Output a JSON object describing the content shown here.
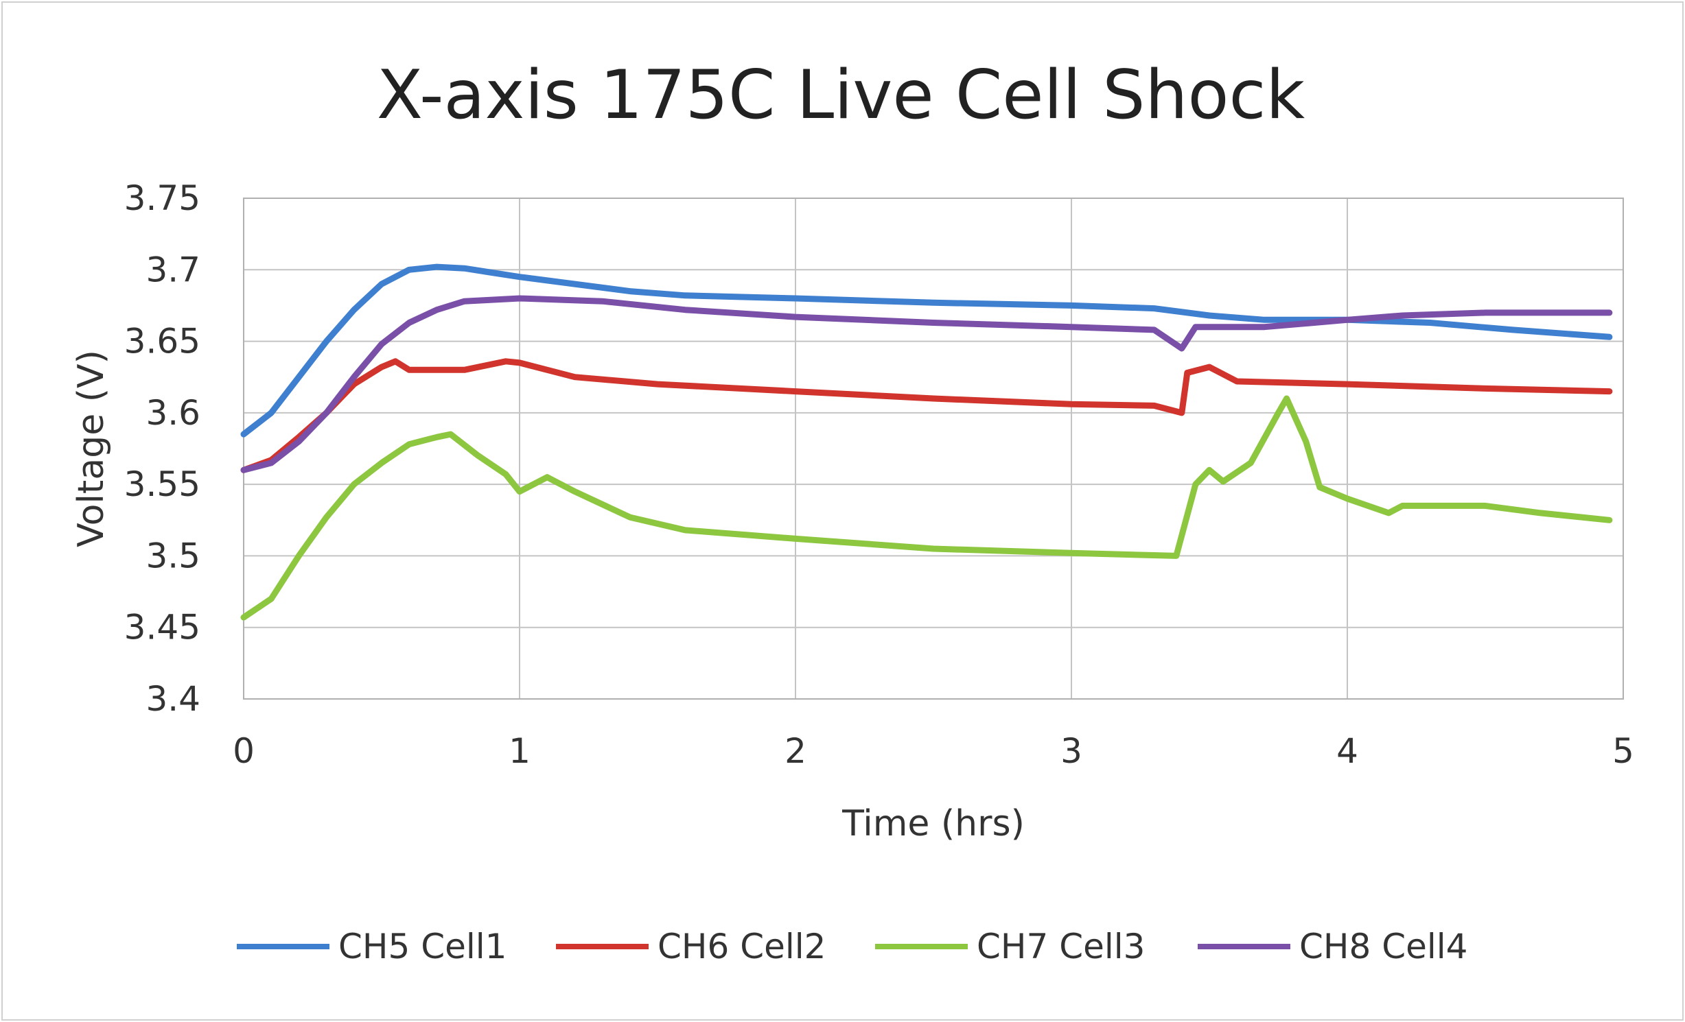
{
  "chart_data": {
    "type": "line",
    "title": "X-axis 175C Live Cell Shock",
    "xlabel": "Time (hrs)",
    "ylabel": "Voltage (V)",
    "xlim": [
      0,
      5
    ],
    "ylim": [
      3.4,
      3.75
    ],
    "xticks": [
      "0",
      "1",
      "2",
      "3",
      "4",
      "5"
    ],
    "yticks": [
      "3.4",
      "3.45",
      "3.5",
      "3.55",
      "3.6",
      "3.65",
      "3.7",
      "3.75"
    ],
    "grid": true,
    "legend_position": "bottom",
    "series": [
      {
        "name": "CH5 Cell1",
        "color": "#3f7fcf",
        "x": [
          0,
          0.1,
          0.2,
          0.3,
          0.4,
          0.5,
          0.6,
          0.7,
          0.8,
          0.9,
          1.0,
          1.2,
          1.4,
          1.6,
          2.0,
          2.5,
          3.0,
          3.3,
          3.5,
          3.7,
          4.0,
          4.3,
          4.6,
          4.95
        ],
        "y": [
          3.585,
          3.6,
          3.625,
          3.65,
          3.672,
          3.69,
          3.7,
          3.702,
          3.701,
          3.698,
          3.695,
          3.69,
          3.685,
          3.682,
          3.68,
          3.677,
          3.675,
          3.673,
          3.668,
          3.665,
          3.665,
          3.663,
          3.658,
          3.653
        ]
      },
      {
        "name": "CH6 Cell2",
        "color": "#d0342c",
        "x": [
          0,
          0.1,
          0.2,
          0.3,
          0.4,
          0.5,
          0.55,
          0.6,
          0.8,
          0.95,
          1.0,
          1.2,
          1.5,
          1.8,
          2.0,
          2.5,
          3.0,
          3.3,
          3.4,
          3.42,
          3.5,
          3.6,
          4.0,
          4.5,
          4.95
        ],
        "y": [
          3.56,
          3.567,
          3.583,
          3.6,
          3.62,
          3.632,
          3.636,
          3.63,
          3.63,
          3.636,
          3.635,
          3.625,
          3.62,
          3.617,
          3.615,
          3.61,
          3.606,
          3.605,
          3.6,
          3.628,
          3.632,
          3.622,
          3.62,
          3.617,
          3.615
        ]
      },
      {
        "name": "CH7 Cell3",
        "color": "#8dc63f",
        "x": [
          0,
          0.1,
          0.2,
          0.3,
          0.4,
          0.5,
          0.6,
          0.7,
          0.75,
          0.85,
          0.95,
          1.0,
          1.1,
          1.2,
          1.4,
          1.6,
          2.0,
          2.5,
          3.0,
          3.38,
          3.45,
          3.5,
          3.55,
          3.65,
          3.75,
          3.78,
          3.85,
          3.9,
          4.0,
          4.15,
          4.2,
          4.5,
          4.7,
          4.95
        ],
        "y": [
          3.457,
          3.47,
          3.5,
          3.527,
          3.55,
          3.565,
          3.578,
          3.583,
          3.585,
          3.57,
          3.557,
          3.545,
          3.555,
          3.545,
          3.527,
          3.518,
          3.512,
          3.505,
          3.502,
          3.5,
          3.55,
          3.56,
          3.552,
          3.565,
          3.6,
          3.61,
          3.58,
          3.548,
          3.54,
          3.53,
          3.535,
          3.535,
          3.53,
          3.525
        ]
      },
      {
        "name": "CH8 Cell4",
        "color": "#7a4fa8",
        "x": [
          0,
          0.1,
          0.2,
          0.3,
          0.4,
          0.5,
          0.6,
          0.7,
          0.8,
          1.0,
          1.3,
          1.6,
          2.0,
          2.5,
          3.0,
          3.3,
          3.4,
          3.45,
          3.7,
          4.0,
          4.2,
          4.5,
          4.95
        ],
        "y": [
          3.56,
          3.565,
          3.58,
          3.6,
          3.625,
          3.648,
          3.663,
          3.672,
          3.678,
          3.68,
          3.678,
          3.672,
          3.667,
          3.663,
          3.66,
          3.658,
          3.645,
          3.66,
          3.66,
          3.665,
          3.668,
          3.67,
          3.67
        ]
      }
    ]
  }
}
